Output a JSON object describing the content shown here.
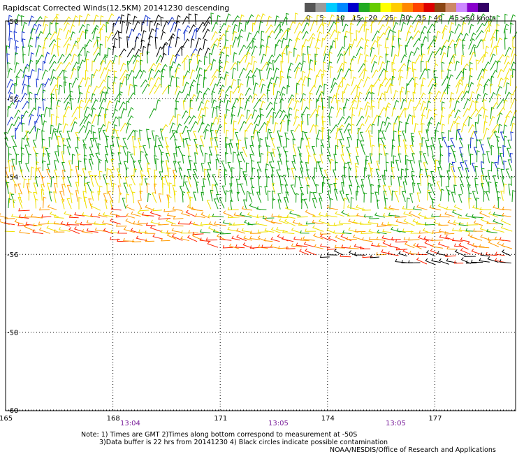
{
  "title": "Rapidscat Corrected Winds(12.5KM) 20141230 descending",
  "colorbar": {
    "colors": [
      "#555555",
      "#9a9a9a",
      "#00ccff",
      "#0088ff",
      "#0000cc",
      "#22aa22",
      "#66cc00",
      "#ffff00",
      "#ffcc00",
      "#ff8800",
      "#ff4400",
      "#dd0000",
      "#8b4513",
      "#cc8866",
      "#cc88ff",
      "#8800cc",
      "#330066"
    ],
    "labels": [
      "0",
      "5",
      "10",
      "15",
      "20",
      "25",
      "30",
      "35",
      "40",
      "45",
      ">50 knots"
    ]
  },
  "map": {
    "lat_labels": [
      "-50",
      "-52",
      "-54",
      "-56",
      "-58",
      "-60"
    ],
    "lon_labels": [
      "165",
      "168",
      "171",
      "174",
      "177"
    ],
    "time_labels": [
      "13:04",
      "13:05",
      "13:05"
    ]
  },
  "notes": [
    "Note: 1) Times are GMT 2)Times along bottom correspond to measurement at -50S",
    "3)Data buffer is 22 hrs from 20141230 4) Black circles indicate possible contamination",
    "NOAA/NESDIS/Office of Research and Applications"
  ]
}
